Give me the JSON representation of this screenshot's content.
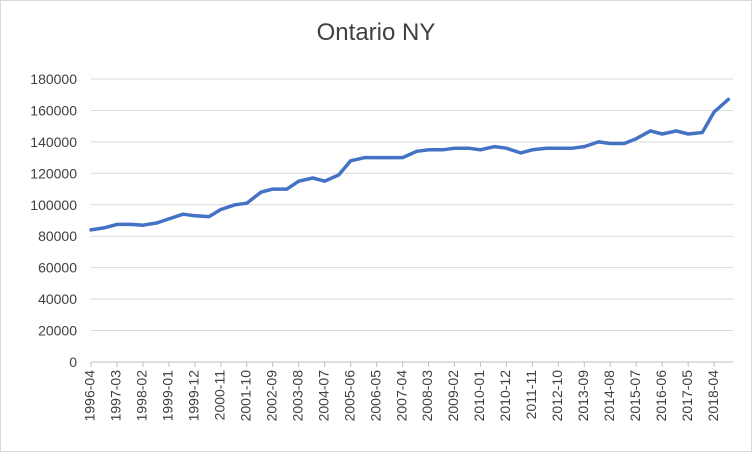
{
  "chart_data": {
    "type": "line",
    "title": "Ontario NY",
    "xlabel": "",
    "ylabel": "",
    "ylim": [
      0,
      180000
    ],
    "y_ticks": [
      0,
      20000,
      40000,
      60000,
      80000,
      100000,
      120000,
      140000,
      160000,
      180000
    ],
    "x_tick_labels": [
      "1996-04",
      "1997-03",
      "1998-02",
      "1999-01",
      "1999-12",
      "2000-11",
      "2001-10",
      "2002-09",
      "2003-08",
      "2004-07",
      "2005-06",
      "2006-05",
      "2007-04",
      "2008-03",
      "2009-02",
      "2010-01",
      "2010-12",
      "2011-11",
      "2012-10",
      "2013-09",
      "2014-08",
      "2015-07",
      "2016-06",
      "2017-05",
      "2018-04"
    ],
    "grid": true,
    "legend": "none",
    "line_color": "#4472c4",
    "series": [
      {
        "x": [
          "1996-04",
          "1996-10",
          "1997-03",
          "1997-09",
          "1998-02",
          "1998-08",
          "1999-01",
          "1999-07",
          "1999-12",
          "2000-06",
          "2000-11",
          "2001-05",
          "2001-10",
          "2002-04",
          "2002-09",
          "2003-03",
          "2003-08",
          "2004-02",
          "2004-07",
          "2005-01",
          "2005-06",
          "2005-12",
          "2006-05",
          "2006-11",
          "2007-04",
          "2007-10",
          "2008-03",
          "2008-09",
          "2009-02",
          "2009-08",
          "2010-01",
          "2010-07",
          "2010-12",
          "2011-06",
          "2011-11",
          "2012-05",
          "2012-10",
          "2013-04",
          "2013-09",
          "2014-03",
          "2014-08",
          "2015-02",
          "2015-07",
          "2016-01",
          "2016-06",
          "2016-12",
          "2017-05",
          "2017-11",
          "2018-04",
          "2018-10"
        ],
        "values": [
          84000,
          85500,
          87500,
          87500,
          87000,
          88500,
          91000,
          94000,
          93000,
          92500,
          97000,
          100000,
          101000,
          108000,
          110000,
          110000,
          115000,
          117000,
          115000,
          119000,
          128000,
          130000,
          130000,
          130000,
          130000,
          134000,
          135000,
          135000,
          136000,
          136000,
          135000,
          137000,
          136000,
          133000,
          135000,
          136000,
          136000,
          136000,
          137000,
          140000,
          139000,
          139000,
          142000,
          147000,
          145000,
          147000,
          145000,
          146000,
          159000,
          167000
        ]
      }
    ]
  }
}
